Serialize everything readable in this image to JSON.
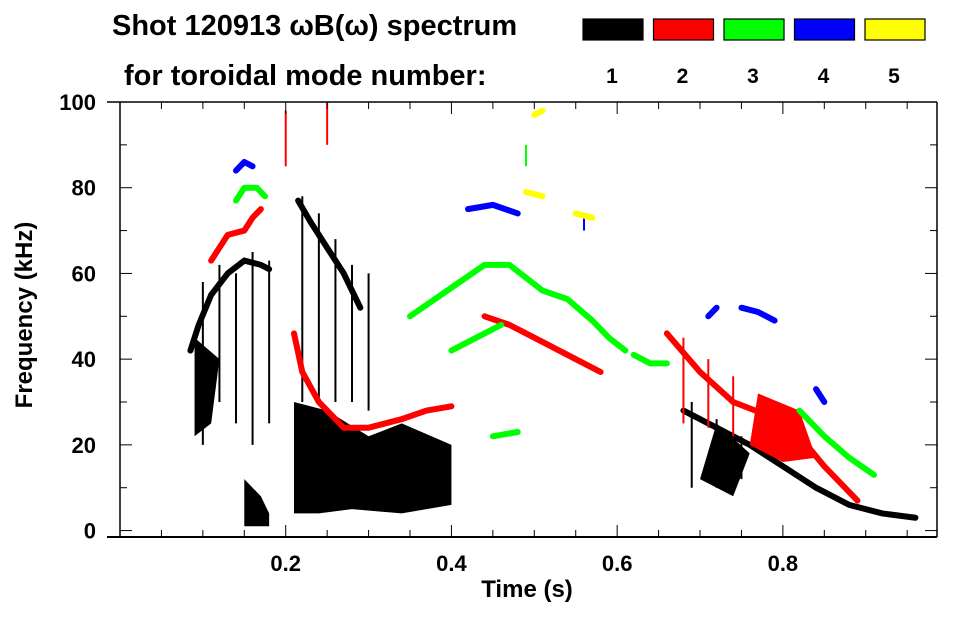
{
  "chart_data": {
    "type": "heatmap",
    "title_line1": "Shot 120913 ωB(ω) spectrum",
    "title_line2": "for toroidal mode number:",
    "xlabel": "Time (s)",
    "ylabel": "Frequency (kHz)",
    "xlim": [
      0,
      0.986
    ],
    "ylim": [
      -1.5,
      100
    ],
    "xticks": [
      0.2,
      0.4,
      0.6,
      0.8
    ],
    "xtick_labels": [
      "0.2",
      "0.4",
      "0.6",
      "0.8"
    ],
    "yticks": [
      0,
      20,
      40,
      60,
      80,
      100
    ],
    "ytick_labels": [
      "0",
      "20",
      "40",
      "60",
      "80",
      "100"
    ],
    "legend": [
      {
        "label": "1",
        "color": "#000000"
      },
      {
        "label": "2",
        "color": "#ff0000"
      },
      {
        "label": "3",
        "color": "#00ff00"
      },
      {
        "label": "4",
        "color": "#0000ff"
      },
      {
        "label": "5",
        "color": "#ffff00"
      }
    ],
    "series": [
      {
        "name": "1",
        "color": "#000000",
        "traces": [
          [
            [
              0.085,
              42
            ],
            [
              0.095,
              48
            ],
            [
              0.11,
              55
            ],
            [
              0.13,
              60
            ],
            [
              0.15,
              63
            ],
            [
              0.17,
              62
            ],
            [
              0.18,
              61
            ]
          ],
          [
            [
              0.215,
              77
            ],
            [
              0.23,
              72
            ],
            [
              0.25,
              66
            ],
            [
              0.27,
              60
            ],
            [
              0.29,
              52
            ]
          ],
          [
            [
              0.68,
              28
            ],
            [
              0.72,
              24
            ],
            [
              0.76,
              20
            ],
            [
              0.8,
              15
            ],
            [
              0.84,
              10
            ],
            [
              0.88,
              6
            ],
            [
              0.92,
              4
            ],
            [
              0.96,
              3
            ]
          ]
        ],
        "regions": [
          [
            [
              0.15,
              1
            ],
            [
              0.15,
              12
            ],
            [
              0.17,
              8
            ],
            [
              0.18,
              4
            ],
            [
              0.18,
              1
            ]
          ],
          [
            [
              0.21,
              4
            ],
            [
              0.21,
              30
            ],
            [
              0.25,
              28
            ],
            [
              0.3,
              22
            ],
            [
              0.34,
              25
            ],
            [
              0.4,
              20
            ],
            [
              0.4,
              6
            ],
            [
              0.34,
              4
            ],
            [
              0.28,
              5
            ],
            [
              0.24,
              4
            ]
          ],
          [
            [
              0.09,
              22
            ],
            [
              0.09,
              45
            ],
            [
              0.12,
              40
            ],
            [
              0.11,
              25
            ]
          ],
          [
            [
              0.7,
              12
            ],
            [
              0.72,
              25
            ],
            [
              0.76,
              18
            ],
            [
              0.74,
              8
            ]
          ]
        ],
        "streaks": [
          [
            0.1,
            20,
            58
          ],
          [
            0.12,
            30,
            62
          ],
          [
            0.14,
            25,
            60
          ],
          [
            0.16,
            20,
            65
          ],
          [
            0.18,
            25,
            63
          ],
          [
            0.22,
            30,
            78
          ],
          [
            0.24,
            30,
            74
          ],
          [
            0.26,
            30,
            68
          ],
          [
            0.28,
            30,
            62
          ],
          [
            0.3,
            28,
            60
          ],
          [
            0.69,
            10,
            30
          ],
          [
            0.72,
            10,
            26
          ],
          [
            0.75,
            12,
            22
          ]
        ]
      },
      {
        "name": "2",
        "color": "#ff0000",
        "traces": [
          [
            [
              0.11,
              63
            ],
            [
              0.13,
              69
            ],
            [
              0.15,
              70
            ],
            [
              0.16,
              73
            ],
            [
              0.17,
              75
            ]
          ],
          [
            [
              0.21,
              46
            ],
            [
              0.22,
              37
            ],
            [
              0.24,
              30
            ],
            [
              0.27,
              24
            ],
            [
              0.3,
              24
            ],
            [
              0.34,
              26
            ],
            [
              0.37,
              28
            ],
            [
              0.4,
              29
            ]
          ],
          [
            [
              0.44,
              50
            ],
            [
              0.47,
              48
            ],
            [
              0.5,
              45
            ],
            [
              0.53,
              42
            ],
            [
              0.56,
              39
            ],
            [
              0.58,
              37
            ]
          ],
          [
            [
              0.66,
              46
            ],
            [
              0.7,
              37
            ],
            [
              0.74,
              30
            ],
            [
              0.78,
              27
            ],
            [
              0.82,
              22
            ],
            [
              0.85,
              15
            ],
            [
              0.89,
              7
            ]
          ]
        ],
        "regions": [
          [
            [
              0.76,
              20
            ],
            [
              0.77,
              32
            ],
            [
              0.82,
              28
            ],
            [
              0.84,
              17
            ],
            [
              0.8,
              16
            ]
          ]
        ],
        "streaks": [
          [
            0.2,
            85,
            98
          ],
          [
            0.25,
            90,
            100
          ],
          [
            0.68,
            25,
            45
          ],
          [
            0.71,
            24,
            40
          ],
          [
            0.74,
            22,
            36
          ]
        ]
      },
      {
        "name": "3",
        "color": "#00ff00",
        "traces": [
          [
            [
              0.14,
              77
            ],
            [
              0.15,
              80
            ],
            [
              0.165,
              80
            ],
            [
              0.175,
              78
            ]
          ],
          [
            [
              0.35,
              50
            ],
            [
              0.38,
              54
            ],
            [
              0.41,
              58
            ],
            [
              0.44,
              62
            ],
            [
              0.47,
              62
            ],
            [
              0.49,
              59
            ],
            [
              0.51,
              56
            ],
            [
              0.54,
              54
            ],
            [
              0.57,
              49
            ],
            [
              0.59,
              45
            ],
            [
              0.61,
              42
            ]
          ],
          [
            [
              0.62,
              41
            ],
            [
              0.64,
              39
            ],
            [
              0.66,
              39
            ]
          ],
          [
            [
              0.4,
              42
            ],
            [
              0.43,
              45
            ],
            [
              0.46,
              48
            ]
          ],
          [
            [
              0.82,
              28
            ],
            [
              0.85,
              22
            ],
            [
              0.88,
              17
            ],
            [
              0.91,
              13
            ]
          ],
          [
            [
              0.45,
              22
            ],
            [
              0.48,
              23
            ]
          ]
        ],
        "regions": [],
        "streaks": [
          [
            0.49,
            85,
            90
          ]
        ]
      },
      {
        "name": "4",
        "color": "#0000ff",
        "traces": [
          [
            [
              0.14,
              84
            ],
            [
              0.15,
              86
            ],
            [
              0.16,
              85
            ]
          ],
          [
            [
              0.42,
              75
            ],
            [
              0.45,
              76
            ],
            [
              0.48,
              74
            ]
          ],
          [
            [
              0.75,
              52
            ],
            [
              0.77,
              51
            ],
            [
              0.79,
              49
            ]
          ],
          [
            [
              0.71,
              50
            ],
            [
              0.72,
              52
            ]
          ],
          [
            [
              0.84,
              33
            ],
            [
              0.85,
              30
            ]
          ]
        ],
        "regions": [],
        "streaks": [
          [
            0.56,
            70,
            73
          ]
        ]
      },
      {
        "name": "5",
        "color": "#ffff00",
        "traces": [
          [
            [
              0.49,
              79
            ],
            [
              0.51,
              78
            ]
          ],
          [
            [
              0.55,
              74
            ],
            [
              0.57,
              73
            ]
          ],
          [
            [
              0.5,
              97
            ],
            [
              0.51,
              98
            ]
          ]
        ],
        "regions": [],
        "streaks": []
      }
    ]
  }
}
